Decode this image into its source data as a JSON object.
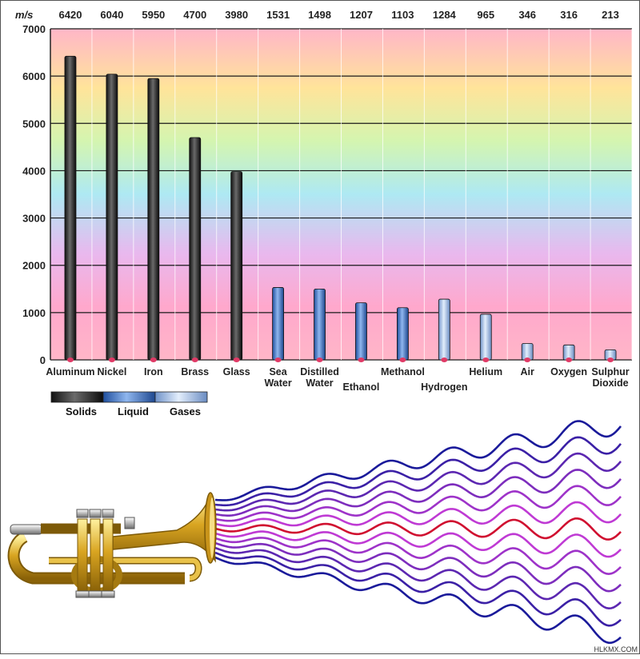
{
  "chart_data": {
    "type": "bar",
    "unit_label": "m/s",
    "ylim": [
      0,
      7000
    ],
    "yticks": [
      0,
      1000,
      2000,
      3000,
      4000,
      5000,
      6000,
      7000
    ],
    "categories": [
      {
        "label": [
          "Aluminum"
        ],
        "value": 6420,
        "phase": "Solids"
      },
      {
        "label": [
          "Nickel"
        ],
        "value": 6040,
        "phase": "Solids"
      },
      {
        "label": [
          "Iron"
        ],
        "value": 5950,
        "phase": "Solids"
      },
      {
        "label": [
          "Brass"
        ],
        "value": 4700,
        "phase": "Solids"
      },
      {
        "label": [
          "Glass"
        ],
        "value": 3980,
        "phase": "Solids"
      },
      {
        "label": [
          "Sea",
          "Water"
        ],
        "value": 1531,
        "phase": "Liquid"
      },
      {
        "label": [
          "Distilled",
          "Water"
        ],
        "value": 1498,
        "phase": "Liquid"
      },
      {
        "label": [
          "Ethanol"
        ],
        "value": 1207,
        "phase": "Liquid"
      },
      {
        "label": [
          "Methanol"
        ],
        "value": 1103,
        "phase": "Liquid"
      },
      {
        "label": [
          "Hydrogen"
        ],
        "value": 1284,
        "phase": "Gases"
      },
      {
        "label": [
          "Helium"
        ],
        "value": 965,
        "phase": "Gases"
      },
      {
        "label": [
          "Air"
        ],
        "value": 346,
        "phase": "Gases"
      },
      {
        "label": [
          "Oxygen"
        ],
        "value": 316,
        "phase": "Gases"
      },
      {
        "label": [
          "Sulphur",
          "Dioxide"
        ],
        "value": 213,
        "phase": "Gases"
      }
    ],
    "legend": [
      {
        "name": "Solids",
        "color": "#3a3a3a"
      },
      {
        "name": "Liquid",
        "color": "#3f6fbf"
      },
      {
        "name": "Gases",
        "color": "#8fb0e0"
      }
    ],
    "grid": true,
    "legend_placement": "bottom-left"
  },
  "illustration": {
    "subject": "trumpet-with-sound-waves",
    "wave_colors": [
      "#1a1a9a",
      "#d01030",
      "#e040e0"
    ]
  },
  "credit": "HLKMX.COM"
}
